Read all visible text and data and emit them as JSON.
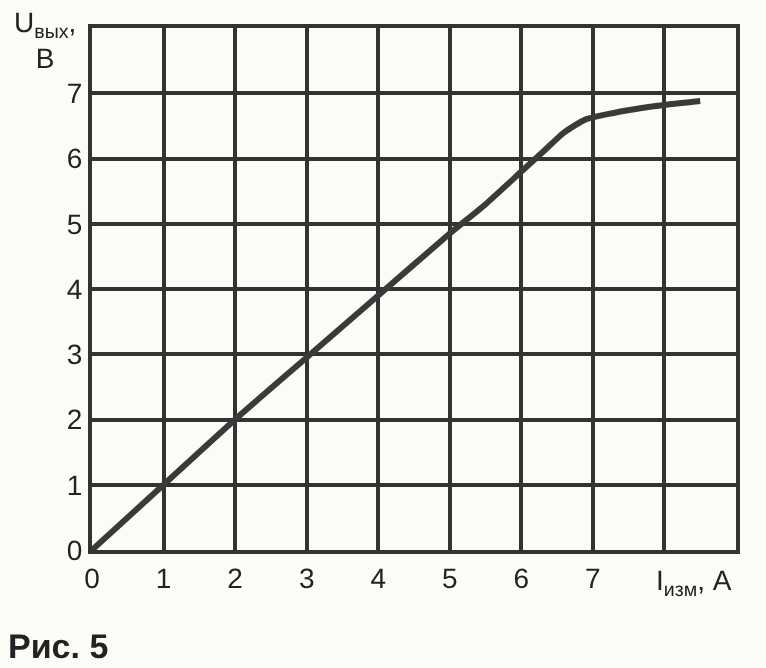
{
  "chart_data": {
    "type": "line",
    "x": [
      0,
      1,
      2,
      3,
      4,
      5,
      5.5,
      6,
      6.3,
      6.6,
      6.9,
      7.2,
      7.6,
      8,
      8.5
    ],
    "series": [
      {
        "color": "#3a3a3a",
        "values": [
          0,
          1,
          2,
          2.95,
          3.9,
          4.85,
          5.3,
          5.8,
          6.1,
          6.4,
          6.6,
          6.68,
          6.76,
          6.82,
          6.88
        ]
      }
    ],
    "xlabel": "I$_{изм}$, A",
    "ylabel": "U$_{вых}$, B",
    "annotations": [
      "Рис. 5"
    ],
    "xlim": [
      0,
      9
    ],
    "ylim": [
      0,
      8
    ],
    "xticks": [
      0,
      1,
      2,
      3,
      4,
      5,
      6,
      7,
      {
        "value": 8,
        "label": null
      }
    ],
    "yticks": [
      0,
      1,
      2,
      3,
      4,
      5,
      6,
      7
    ],
    "grid": true,
    "marker": "none",
    "line_style": "solid"
  }
}
